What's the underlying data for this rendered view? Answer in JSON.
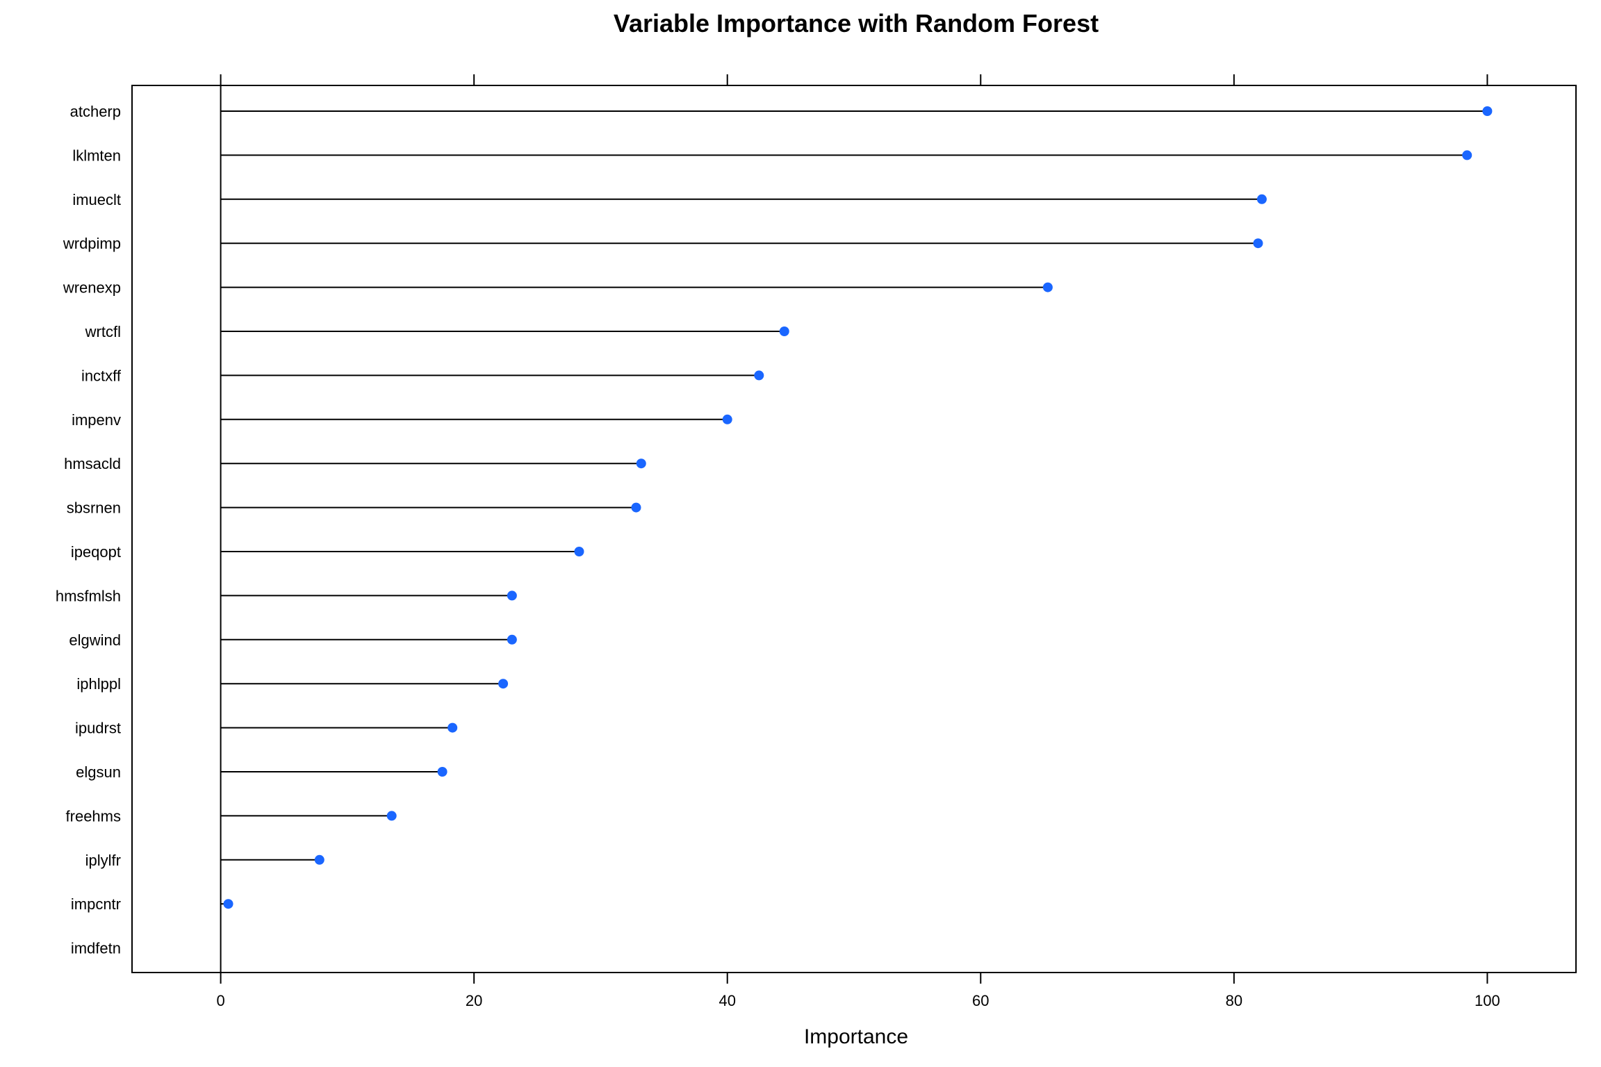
{
  "chart_data": {
    "type": "lollipop",
    "title": "Variable Importance with Random Forest",
    "xlabel": "Importance",
    "ylabel": "",
    "xlim": [
      -7,
      107
    ],
    "xticks": [
      0,
      20,
      40,
      60,
      80,
      100
    ],
    "grid": false,
    "colors": {
      "point": "#1a66ff",
      "line": "#000000"
    },
    "categories": [
      "atcherp",
      "lklmten",
      "imueclt",
      "wrdpimp",
      "wrenexp",
      "wrtcfl",
      "inctxff",
      "impenv",
      "hmsacld",
      "sbsrnen",
      "ipeqopt",
      "hmsfmlsh",
      "elgwind",
      "iphlppl",
      "ipudrst",
      "elgsun",
      "freehms",
      "iplylfr",
      "impcntr",
      "imdfetn"
    ],
    "values": [
      100.0,
      98.4,
      82.2,
      81.9,
      65.3,
      44.5,
      42.5,
      40.0,
      33.2,
      32.8,
      28.3,
      23.0,
      23.0,
      22.3,
      18.3,
      17.5,
      13.5,
      7.8,
      0.6,
      0.0
    ]
  }
}
